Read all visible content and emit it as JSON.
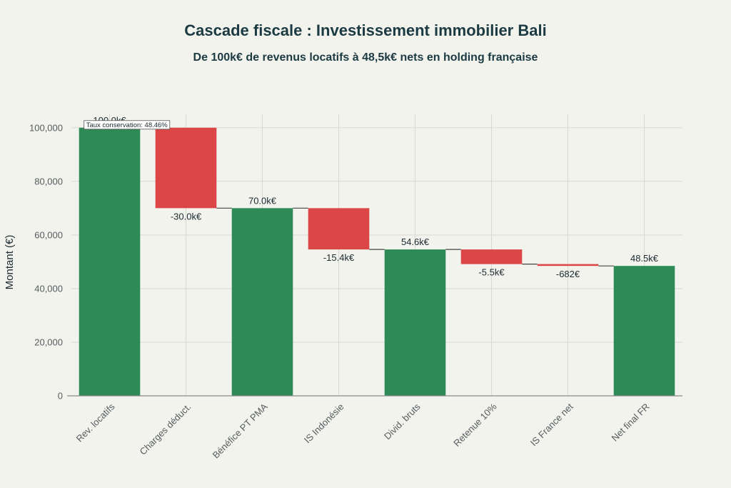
{
  "chart_data": {
    "type": "waterfall",
    "title": "Cascade fiscale : Investissement immobilier Bali",
    "subtitle": "De 100k€ de revenus locatifs à 48,5k€ nets en holding française",
    "ylabel": "Montant (€)",
    "xlabel": "",
    "ylim": [
      0,
      105000
    ],
    "yticks": [
      0,
      20000,
      40000,
      60000,
      80000,
      100000
    ],
    "ytick_labels": [
      "0",
      "20,000",
      "40,000",
      "60,000",
      "80,000",
      "100,000"
    ],
    "grid": true,
    "bars": [
      {
        "category": "Rev. locatifs",
        "kind": "total",
        "value": 100000,
        "label": "100.0k€"
      },
      {
        "category": "Charges déduct.",
        "kind": "delta",
        "value": -30000,
        "label": "-30.0k€"
      },
      {
        "category": "Bénéfice PT PMA",
        "kind": "total",
        "value": 70000,
        "label": "70.0k€"
      },
      {
        "category": "IS Indonésie",
        "kind": "delta",
        "value": -15400,
        "label": "-15.4k€"
      },
      {
        "category": "Divid. bruts",
        "kind": "total",
        "value": 54600,
        "label": "54.6k€"
      },
      {
        "category": "Retenue 10%",
        "kind": "delta",
        "value": -5460,
        "label": "-5.5k€"
      },
      {
        "category": "IS France net",
        "kind": "delta",
        "value": -682,
        "label": "-682€"
      },
      {
        "category": "Net final FR",
        "kind": "total",
        "value": 48458,
        "label": "48.5k€"
      }
    ],
    "annotation": {
      "text": "Taux conservation: 48.46%"
    },
    "colors": {
      "total": "#2e8b57",
      "decrease": "#dc4646",
      "connector": "#444444",
      "grid": "#d9d9d3",
      "axis": "#8a8a8a"
    }
  }
}
